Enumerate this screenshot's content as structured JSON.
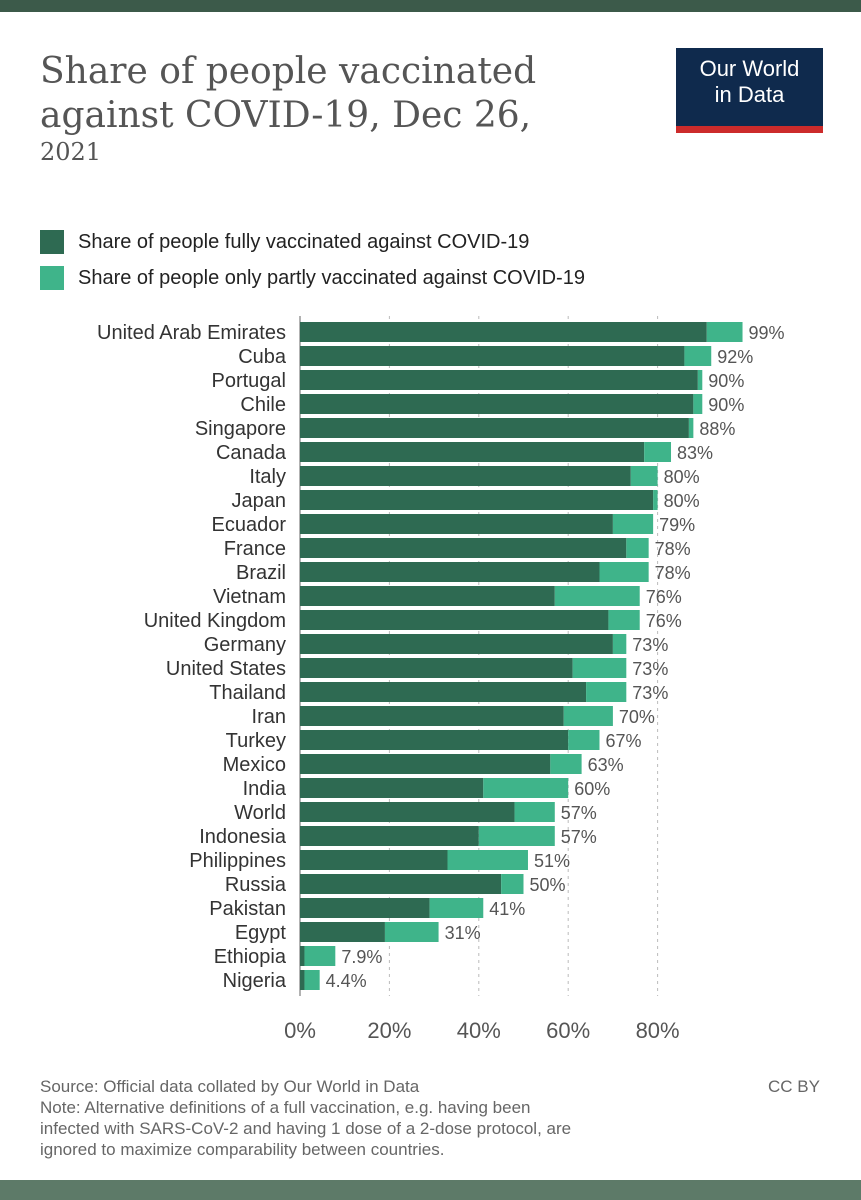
{
  "title_line1": "Share of people vaccinated",
  "title_line2": "against COVID-19, Dec 26,",
  "title_line3": "2021",
  "logo": {
    "line1": "Our World",
    "line2": "in Data"
  },
  "footer": {
    "source": "Source: Official data collated by Our World in Data",
    "license": "CC BY",
    "note_line1": "Note: Alternative definitions of a full vaccination, e.g. having been",
    "note_line2": "infected with SARS-CoV-2 and having 1 dose of a 2-dose protocol, are",
    "note_line3": "ignored to maximize comparability between countries."
  },
  "colors": {
    "full": "#2e6a52",
    "partial": "#3fb48a",
    "grid": "#bbbbbb"
  },
  "chart_data": {
    "type": "bar",
    "orientation": "horizontal",
    "stacked": true,
    "legend_position": "top",
    "xlim": [
      0,
      100
    ],
    "x_ticks": [
      {
        "value": 0,
        "label": "0%"
      },
      {
        "value": 20,
        "label": "20%"
      },
      {
        "value": 40,
        "label": "40%"
      },
      {
        "value": 60,
        "label": "60%"
      },
      {
        "value": 80,
        "label": "80%"
      }
    ],
    "categories": [
      "United Arab Emirates",
      "Cuba",
      "Portugal",
      "Chile",
      "Singapore",
      "Canada",
      "Italy",
      "Japan",
      "Ecuador",
      "France",
      "Brazil",
      "Vietnam",
      "United Kingdom",
      "Germany",
      "United States",
      "Thailand",
      "Iran",
      "Turkey",
      "Mexico",
      "India",
      "World",
      "Indonesia",
      "Philippines",
      "Russia",
      "Pakistan",
      "Egypt",
      "Ethiopia",
      "Nigeria"
    ],
    "series": [
      {
        "name": "Share of people fully vaccinated against COVID-19",
        "values": [
          91,
          86,
          89,
          88,
          87,
          77,
          74,
          79,
          70,
          73,
          67,
          57,
          69,
          70,
          61,
          64,
          59,
          60,
          56,
          41,
          48,
          40,
          33,
          45,
          29,
          19,
          1,
          1
        ]
      },
      {
        "name": "Share of people only partly vaccinated against COVID-19",
        "values": [
          8,
          6,
          1,
          2,
          1,
          6,
          6,
          1,
          9,
          5,
          11,
          19,
          7,
          3,
          12,
          9,
          11,
          7,
          7,
          19,
          9,
          17,
          18,
          5,
          12,
          12,
          6.9,
          3.4
        ]
      }
    ],
    "value_labels": [
      "99%",
      "92%",
      "90%",
      "90%",
      "88%",
      "83%",
      "80%",
      "80%",
      "79%",
      "78%",
      "78%",
      "76%",
      "76%",
      "73%",
      "73%",
      "73%",
      "70%",
      "67%",
      "63%",
      "60%",
      "57%",
      "57%",
      "51%",
      "50%",
      "41%",
      "31%",
      "7.9%",
      "4.4%"
    ]
  }
}
